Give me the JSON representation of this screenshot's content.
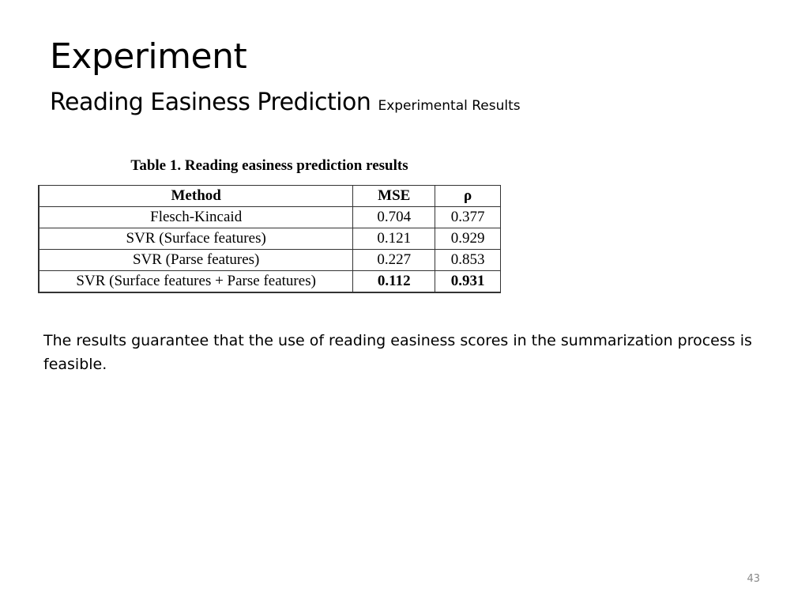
{
  "slide": {
    "title": "Experiment",
    "subtitle": "Reading Easiness Prediction",
    "subtitle_small": "Experimental Results",
    "table": {
      "caption": "Table 1. Reading easiness prediction results",
      "headers": [
        "Method",
        "MSE",
        "ρ"
      ],
      "rows": [
        [
          "Flesch-Kincaid",
          "0.704",
          "0.377"
        ],
        [
          "SVR (Surface features)",
          "0.121",
          "0.929"
        ],
        [
          "SVR (Parse features)",
          "0.227",
          "0.853"
        ],
        [
          "SVR (Surface features + Parse features)",
          "0.112",
          "0.931"
        ]
      ]
    },
    "body_text": "The results guarantee that the use of reading easiness scores in the summarization process is feasible.",
    "page_number": "43"
  }
}
